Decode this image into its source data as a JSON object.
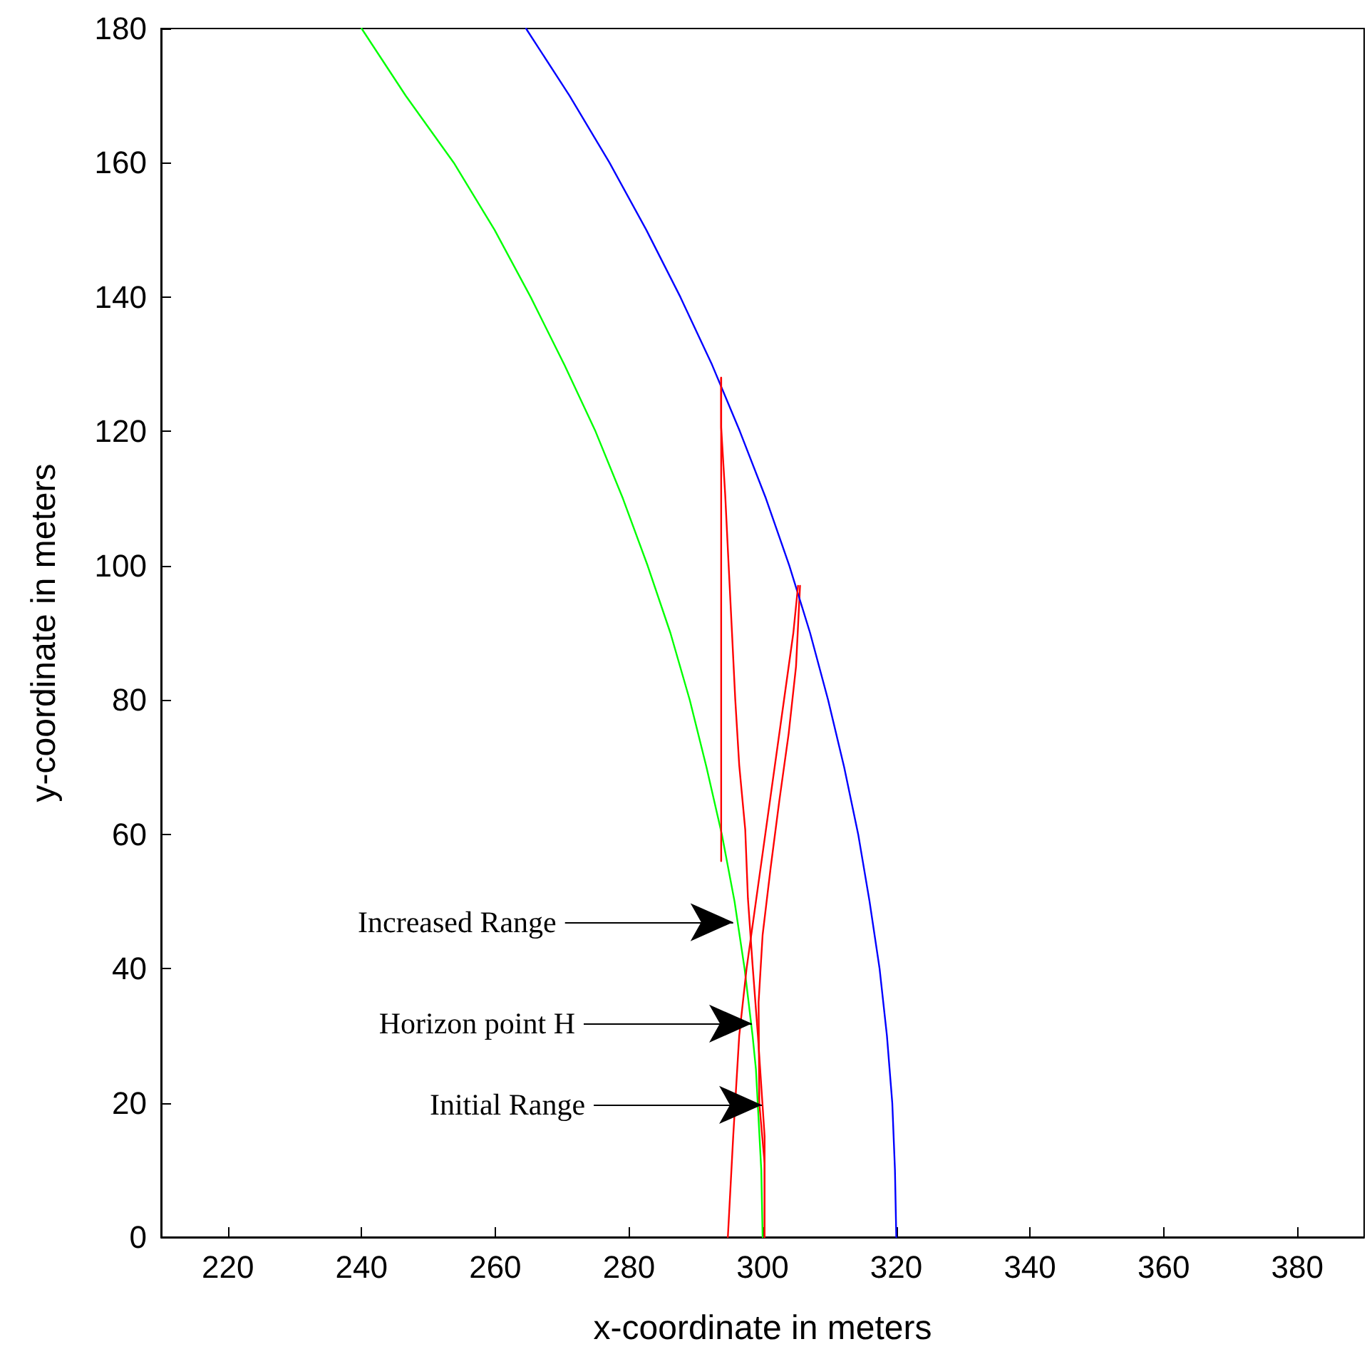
{
  "chart_data": {
    "type": "line",
    "xlabel": "x-coordinate in meters",
    "ylabel": "y-coordinate in meters",
    "xlim": [
      210,
      390
    ],
    "xticks": [
      220,
      240,
      260,
      280,
      300,
      320,
      340,
      360,
      380
    ],
    "ylim": [
      0,
      180
    ],
    "yticks": [
      0,
      20,
      40,
      60,
      80,
      100,
      120,
      140,
      160,
      180
    ],
    "grid": false,
    "marker": "none",
    "line_style": "solid",
    "series": [
      {
        "color": "#00ff00",
        "x": [
          240,
          246.6,
          253.8,
          259.9,
          265.3,
          270.3,
          275.0,
          279.1,
          282.8,
          286.2,
          289.1,
          291.6,
          293.9,
          295.8,
          297.3,
          298.5,
          299.0,
          299.8,
          300
        ],
        "values": [
          180,
          170,
          160,
          150,
          140,
          130,
          120,
          110,
          100,
          90,
          80,
          70,
          60,
          50,
          40,
          30,
          25,
          10,
          0
        ]
      },
      {
        "color": "#0000ff",
        "x": [
          264.6,
          271.1,
          277.1,
          282.6,
          287.7,
          292.4,
          296.6,
          300.5,
          304.0,
          307.1,
          309.8,
          312.2,
          314.3,
          316.0,
          317.5,
          318.6,
          319.4,
          319.8,
          320
        ],
        "values": [
          180,
          170,
          160,
          150,
          140,
          130,
          120,
          110,
          100,
          90,
          80,
          70,
          60,
          50,
          40,
          30,
          20,
          10,
          0
        ]
      },
      {
        "color": "#ff0000",
        "x": [
          293.8,
          293.8
        ],
        "values": [
          128,
          56
        ]
      },
      {
        "color": "#ff0000",
        "x": [
          293.8,
          293.8,
          294.4,
          294.9,
          295.4,
          295.9,
          296.5,
          297.4,
          297.8,
          298.5,
          299.3,
          300.3,
          300.3
        ],
        "values": [
          128,
          120.6,
          110.6,
          100.4,
          90.4,
          80.2,
          70.3,
          60.7,
          50.5,
          40.5,
          30,
          15,
          0
        ]
      },
      {
        "color": "#ff0000",
        "x": [
          305.3,
          304.6,
          303.2,
          301.8,
          300.4,
          299.0,
          297.6,
          296.5,
          295.6,
          294.8
        ],
        "values": [
          97,
          90,
          80,
          70,
          60,
          50,
          40,
          30,
          15,
          0
        ]
      },
      {
        "color": "#ff0000",
        "x": [
          305.6,
          305.0,
          303.9,
          302.5,
          301.2,
          300.0,
          299.4,
          299.5,
          300.3,
          300.3
        ],
        "values": [
          97,
          85,
          75,
          65,
          55,
          45,
          35,
          20,
          11,
          0
        ]
      }
    ],
    "annotations": [
      {
        "text": "Increased Range",
        "x": 295.6,
        "y": 46.9
      },
      {
        "text": "Horizon point H",
        "x": 298.4,
        "y": 31.8
      },
      {
        "text": "Initial Range",
        "x": 299.9,
        "y": 19.7
      }
    ]
  }
}
